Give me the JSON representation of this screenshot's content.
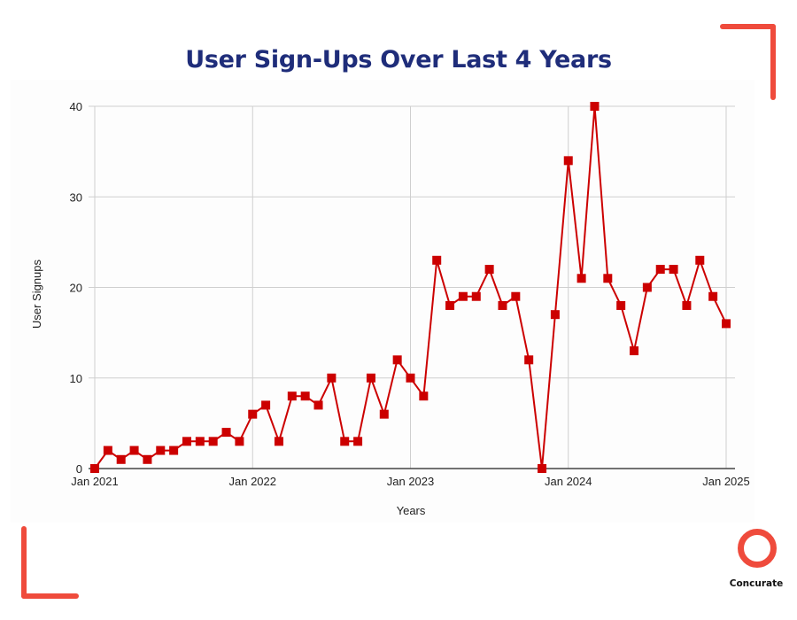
{
  "title": "User Sign-Ups Over Last 4 Years",
  "brand": {
    "name": "Concurate",
    "accent_color": "#ef4b3c",
    "title_color": "#1f2d7a"
  },
  "chart_data": {
    "type": "line",
    "title": "User Sign-Ups Over Last 4 Years",
    "xlabel": "Years",
    "ylabel": "User Signups",
    "ylim": [
      0,
      40
    ],
    "yticks": [
      0,
      10,
      20,
      30,
      40
    ],
    "xticks": [
      "Jan 2021",
      "Jan 2022",
      "Jan 2023",
      "Jan 2024",
      "Jan 2025"
    ],
    "grid": true,
    "legend": null,
    "marker": "square",
    "line_color": "#cc0000",
    "x": [
      "2021-01",
      "2021-02",
      "2021-03",
      "2021-04",
      "2021-05",
      "2021-06",
      "2021-07",
      "2021-08",
      "2021-09",
      "2021-10",
      "2021-11",
      "2021-12",
      "2022-01",
      "2022-02",
      "2022-03",
      "2022-04",
      "2022-05",
      "2022-06",
      "2022-07",
      "2022-08",
      "2022-09",
      "2022-10",
      "2022-11",
      "2022-12",
      "2023-01",
      "2023-02",
      "2023-03",
      "2023-04",
      "2023-05",
      "2023-06",
      "2023-07",
      "2023-08",
      "2023-09",
      "2023-10",
      "2023-11",
      "2023-12",
      "2024-01",
      "2024-02",
      "2024-03",
      "2024-04",
      "2024-05",
      "2024-06",
      "2024-07",
      "2024-08",
      "2024-09",
      "2024-10",
      "2024-11",
      "2024-12",
      "2025-01"
    ],
    "series": [
      {
        "name": "User Signups",
        "values": [
          0,
          2,
          1,
          2,
          1,
          2,
          2,
          3,
          3,
          3,
          4,
          3,
          6,
          7,
          3,
          8,
          8,
          7,
          10,
          3,
          3,
          10,
          6,
          12,
          10,
          8,
          23,
          18,
          19,
          19,
          22,
          18,
          19,
          12,
          0,
          17,
          34,
          21,
          40,
          21,
          18,
          13,
          20,
          22,
          22,
          18,
          23,
          19,
          16
        ]
      }
    ]
  }
}
